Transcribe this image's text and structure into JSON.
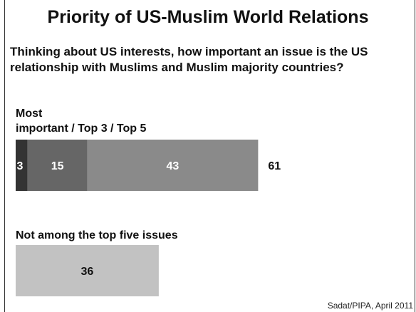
{
  "title": "Priority of US-Muslim World Relations",
  "question": "Thinking about US interests, how important an issue is the US relationship with Muslims and Muslim majority countries?",
  "source": "Sadat/PIPA, April 2011",
  "colors": {
    "most_important": "#333333",
    "top3": "#666666",
    "top5": "#8a8a8a",
    "not_top5": "#c2c2c2",
    "label_dark": "#ffffff",
    "label_light": "#111111"
  },
  "chart_data": {
    "type": "bar",
    "orientation": "horizontal-stacked",
    "groups": [
      {
        "label_line1": "Most",
        "label_line2": "important / Top 3 / Top 5",
        "segments": [
          {
            "value": 3,
            "label": "3",
            "color_key": "most_important"
          },
          {
            "value": 15,
            "label": "15",
            "color_key": "top3"
          },
          {
            "value": 43,
            "label": "43",
            "color_key": "top5"
          }
        ],
        "total": 61,
        "total_label": "61"
      },
      {
        "label_line1": "Not among the top five issues",
        "segments": [
          {
            "value": 36,
            "label": "36",
            "color_key": "not_top5"
          }
        ]
      }
    ]
  }
}
